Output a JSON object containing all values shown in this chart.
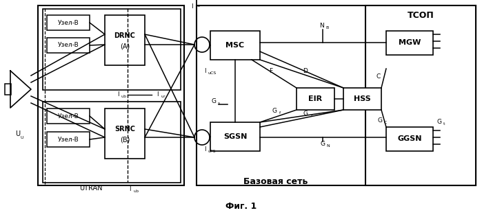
{
  "title": "Фиг. 1",
  "background": "#ffffff",
  "fig_width": 6.99,
  "fig_height": 3.16,
  "dpi": 100,
  "utran_label": "UTRAN",
  "tсоп_label": "ТСОП",
  "base_net_label": "Базовая сеть"
}
